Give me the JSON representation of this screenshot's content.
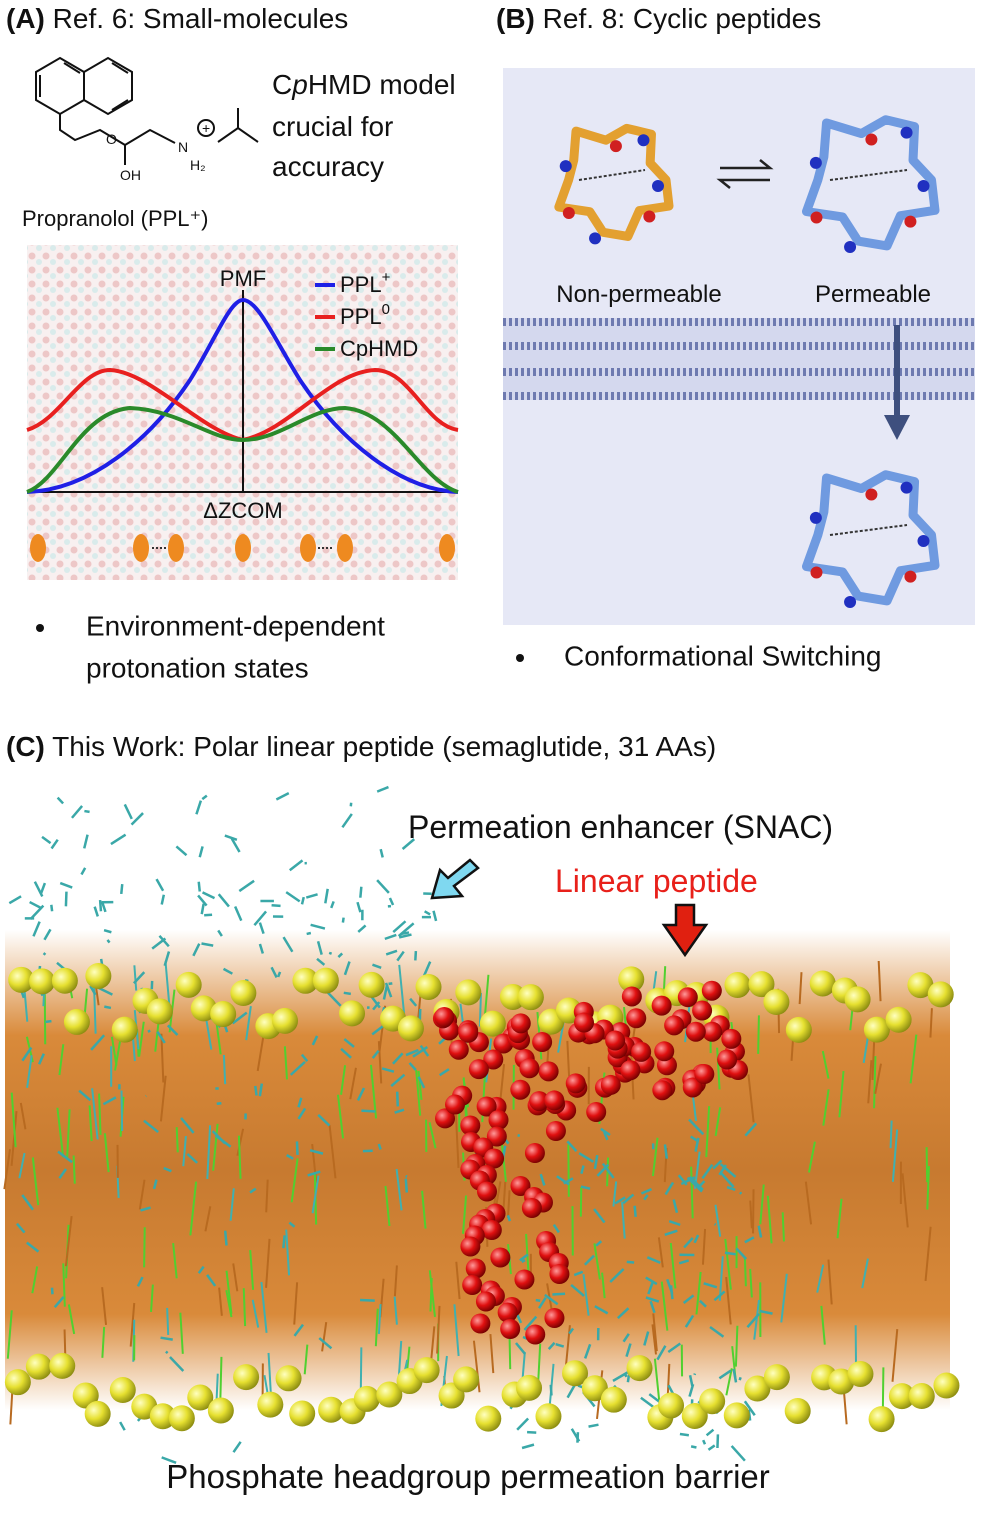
{
  "panel_a": {
    "label": "(A)",
    "title": "Ref. 6: Small-molecules",
    "note": {
      "line1_pre": "C",
      "line1_italic": "p",
      "line1_post": "HMD model",
      "line2": "crucial for",
      "line3": "accuracy"
    },
    "molecule": {
      "name": "Propranolol (PPL⁺)",
      "atoms": [
        "O",
        "OH",
        "N",
        "H₂",
        "+"
      ]
    },
    "plot": {
      "y_label": "PMF",
      "x_label": "ΔZCOM",
      "legend": [
        {
          "name": "PPL",
          "sup": "+",
          "color": "#1f1fe6"
        },
        {
          "name": "PPL",
          "sup": "0",
          "color": "#e8201f"
        },
        {
          "name": "CpHMD",
          "color": "#2a8a2a"
        }
      ]
    },
    "bullet": [
      "Environment-dependent",
      "protonation states"
    ]
  },
  "panel_b": {
    "label": "(B)",
    "title": "Ref. 8: Cyclic peptides",
    "states": [
      "Non-permeable",
      "Permeable"
    ],
    "bullet": "Conformational Switching"
  },
  "panel_c": {
    "label": "(C)",
    "title": "This Work: Polar linear peptide (semaglutide, 31 AAs)",
    "enhancer": "Permeation enhancer (SNAC)",
    "peptide": "Linear peptide",
    "caption": "Phosphate headgroup permeation barrier"
  }
}
